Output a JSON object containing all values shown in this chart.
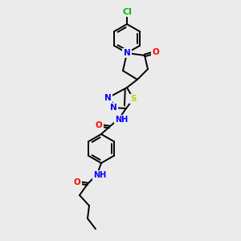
{
  "bg_color": "#ebebeb",
  "bond_color": "#000000",
  "atom_colors": {
    "N": "#0000ff",
    "O": "#ff0000",
    "S": "#cccc00",
    "Cl": "#00bb00",
    "C": "#000000",
    "H": "#000000"
  },
  "font_size": 7.5,
  "bond_lw": 1.4,
  "fig_size": [
    3.0,
    3.0
  ],
  "dpi": 100
}
